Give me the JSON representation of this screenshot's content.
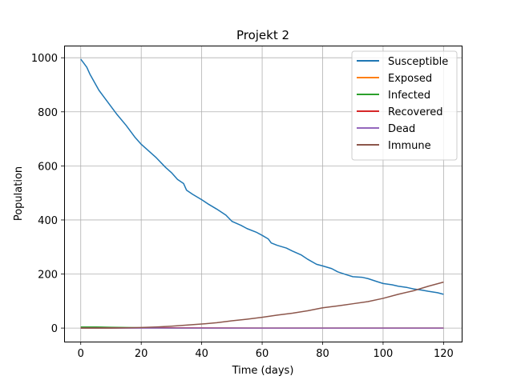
{
  "chart_data": {
    "type": "line",
    "title": "Projekt 2",
    "xlabel": "Time (days)",
    "ylabel": "Population",
    "xlim": [
      -5.5,
      126
    ],
    "ylim": [
      -50,
      1045
    ],
    "xticks": [
      0,
      20,
      40,
      60,
      80,
      100,
      120
    ],
    "yticks": [
      0,
      200,
      400,
      600,
      800,
      1000
    ],
    "grid": true,
    "legend_position": "top-right",
    "series": [
      {
        "name": "Susceptible",
        "color": "#1f77b4",
        "x": [
          0,
          1,
          2,
          3,
          5,
          6,
          8,
          10,
          12,
          15,
          18,
          20,
          23,
          25,
          28,
          30,
          32,
          34,
          35,
          37,
          40,
          42,
          45,
          48,
          50,
          53,
          55,
          58,
          60,
          62,
          63,
          65,
          68,
          70,
          73,
          75,
          78,
          80,
          83,
          85,
          88,
          90,
          93,
          95,
          98,
          100,
          103,
          105,
          108,
          110,
          113,
          115,
          118,
          120
        ],
        "y": [
          995,
          980,
          965,
          940,
          900,
          880,
          850,
          820,
          790,
          750,
          705,
          680,
          650,
          630,
          595,
          575,
          550,
          535,
          510,
          495,
          475,
          460,
          440,
          418,
          395,
          380,
          368,
          355,
          343,
          330,
          315,
          306,
          296,
          285,
          270,
          255,
          236,
          230,
          220,
          208,
          197,
          190,
          188,
          183,
          172,
          165,
          160,
          155,
          150,
          145,
          140,
          136,
          131,
          125
        ]
      },
      {
        "name": "Exposed",
        "color": "#ff7f0e",
        "x": [
          0,
          5,
          10,
          15,
          20,
          30,
          120
        ],
        "y": [
          3,
          3,
          2,
          1,
          1,
          0,
          0
        ]
      },
      {
        "name": "Infected",
        "color": "#2ca02c",
        "x": [
          0,
          5,
          10,
          15,
          20,
          30,
          120
        ],
        "y": [
          4,
          4,
          3,
          2,
          1,
          0,
          0
        ]
      },
      {
        "name": "Recovered",
        "color": "#d62728",
        "x": [
          0,
          30,
          60,
          120
        ],
        "y": [
          0,
          1,
          0,
          0
        ]
      },
      {
        "name": "Dead",
        "color": "#9467bd",
        "x": [
          0,
          60,
          100,
          120
        ],
        "y": [
          0,
          0,
          0,
          0
        ]
      },
      {
        "name": "Immune",
        "color": "#8c564b",
        "x": [
          0,
          10,
          15,
          20,
          25,
          30,
          35,
          40,
          45,
          50,
          55,
          60,
          65,
          70,
          75,
          80,
          85,
          90,
          95,
          100,
          105,
          110,
          115,
          120
        ],
        "y": [
          0,
          0,
          1,
          2,
          4,
          7,
          11,
          15,
          20,
          27,
          33,
          40,
          48,
          55,
          64,
          75,
          82,
          90,
          98,
          110,
          125,
          138,
          155,
          170
        ]
      }
    ]
  }
}
